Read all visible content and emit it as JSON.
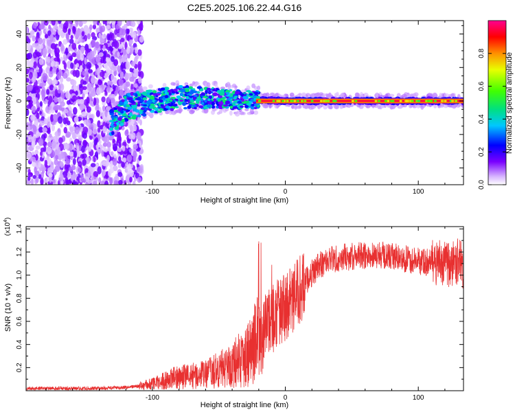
{
  "title": "C2E5.2025.106.22.44.G16",
  "chart_data": [
    {
      "type": "heatmap",
      "title": "C2E5.2025.106.22.44.G16",
      "xlabel": "Height of straight line (km)",
      "ylabel": "Frequency (Hz)",
      "xlim": [
        -195,
        134
      ],
      "ylim": [
        -50,
        48
      ],
      "xticks": [
        -100,
        0,
        100
      ],
      "yticks": [
        -40,
        -20,
        0,
        20,
        40
      ],
      "grid": false,
      "colorbar": {
        "label": "Normalized spectral amplitude",
        "range": [
          0,
          1
        ],
        "ticks": [
          0.0,
          0.2,
          0.4,
          0.6,
          0.8
        ],
        "colormap": [
          "#ffffff",
          "#d7b5ff",
          "#7a00ff",
          "#0000ff",
          "#00c8ff",
          "#00e080",
          "#40ff00",
          "#e8ff00",
          "#ff9000",
          "#ff0000",
          "#ff0090"
        ]
      },
      "ridge": [
        {
          "x": -130,
          "y": -12
        },
        {
          "x": -120,
          "y": -4
        },
        {
          "x": -100,
          "y": 0
        },
        {
          "x": -80,
          "y": 2
        },
        {
          "x": -60,
          "y": 2
        },
        {
          "x": -40,
          "y": 1
        },
        {
          "x": -20,
          "y": 0.5
        },
        {
          "x": 0,
          "y": 0
        },
        {
          "x": 50,
          "y": 0
        },
        {
          "x": 100,
          "y": 0
        },
        {
          "x": 134,
          "y": 0
        }
      ]
    },
    {
      "type": "line",
      "xlabel": "Height of straight line (km)",
      "ylabel": "SNR (10 * v/v)",
      "y_scale_label": "(x10",
      "y_scale_exp": "4",
      "xlim": [
        -195,
        134
      ],
      "ylim": [
        0,
        1.42
      ],
      "xticks": [
        -100,
        0,
        100
      ],
      "yticks": [
        0.2,
        0.4,
        0.6,
        0.8,
        1.0,
        1.2,
        1.4
      ],
      "grid": false,
      "color": "#e83030",
      "series": [
        {
          "x": [
            -195,
            -160,
            -140,
            -120,
            -110,
            -100,
            -90,
            -80,
            -70,
            -60,
            -50,
            -40,
            -35,
            -30,
            -25,
            -22,
            -18,
            -15,
            -10,
            -5,
            0,
            5,
            10,
            15,
            20,
            25,
            30,
            35,
            40,
            50,
            60,
            70,
            80,
            90,
            100,
            110,
            120,
            125,
            130,
            134
          ],
          "y": [
            0.02,
            0.02,
            0.02,
            0.03,
            0.04,
            0.06,
            0.09,
            0.12,
            0.13,
            0.14,
            0.18,
            0.22,
            0.27,
            0.3,
            0.36,
            0.45,
            0.42,
            0.55,
            0.62,
            0.68,
            0.72,
            0.78,
            0.86,
            0.94,
            1.02,
            1.08,
            1.12,
            1.14,
            1.15,
            1.16,
            1.17,
            1.17,
            1.16,
            1.14,
            1.12,
            1.11,
            1.1,
            1.09,
            1.12,
            1.08
          ]
        }
      ]
    }
  ]
}
